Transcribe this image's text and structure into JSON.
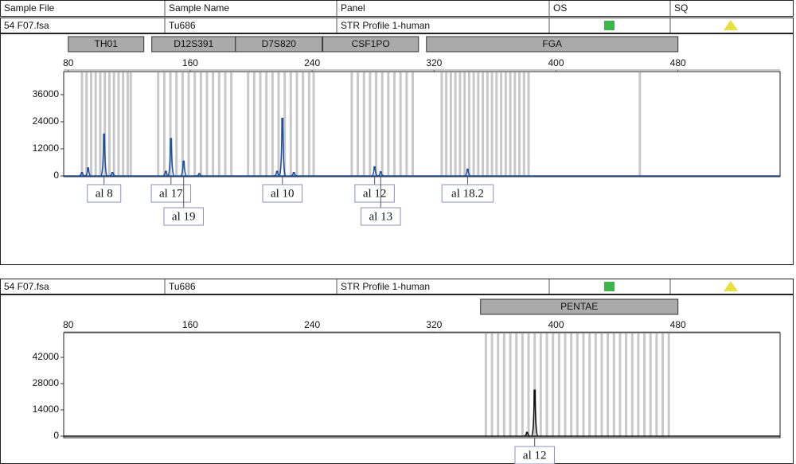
{
  "header": [
    "Sample File",
    "Sample Name",
    "Panel",
    "OS",
    "SQ"
  ],
  "samples": [
    {
      "file": "54  F07.fsa",
      "name": "Tu686",
      "panel": "STR Profile 1-human",
      "markers": [
        {
          "name": "TH01",
          "start": 80,
          "end": 129.6
        },
        {
          "name": "D12S391",
          "start": 134.8,
          "end": 189.7
        },
        {
          "name": "D7S820",
          "start": 189.7,
          "end": 246.6
        },
        {
          "name": "CSF1PO",
          "start": 247,
          "end": 309.8
        },
        {
          "name": "FGA",
          "start": 315,
          "end": 480
        }
      ],
      "xlim": [
        77,
        547
      ],
      "xticks": [
        80,
        160,
        240,
        320,
        400,
        480
      ],
      "ylim": [
        -350,
        46200
      ],
      "yticks": [
        0,
        12000,
        24000,
        36000
      ],
      "color": "#1f4fa0",
      "bins": [
        89,
        92,
        95,
        98,
        101,
        104,
        107,
        110,
        113,
        116,
        119,
        121,
        139,
        143,
        147,
        151,
        155,
        159,
        163,
        167,
        171,
        175,
        179,
        183,
        187,
        198,
        202,
        206,
        210,
        214,
        218,
        222,
        226,
        230,
        234,
        238,
        241,
        266,
        270,
        274,
        278,
        282,
        286,
        290,
        294,
        298,
        302,
        306,
        325,
        328,
        331,
        334,
        337,
        340,
        343,
        346,
        349,
        352,
        355,
        358,
        361,
        364,
        367,
        370,
        373,
        376,
        379,
        382,
        455
      ],
      "peaks": [
        {
          "x": 89,
          "y": 1500
        },
        {
          "x": 93,
          "y": 3500
        },
        {
          "x": 103.5,
          "y": 18500,
          "label": "al 8"
        },
        {
          "x": 109,
          "y": 1500
        },
        {
          "x": 144,
          "y": 2000
        },
        {
          "x": 147.4,
          "y": 16500,
          "label": "al 17"
        },
        {
          "x": 155.7,
          "y": 6500,
          "label": "al 19"
        },
        {
          "x": 166,
          "y": 1000
        },
        {
          "x": 217,
          "y": 2000
        },
        {
          "x": 220.5,
          "y": 25500,
          "label": "al 10"
        },
        {
          "x": 228,
          "y": 1500
        },
        {
          "x": 281,
          "y": 4000,
          "label": "al 12"
        },
        {
          "x": 285,
          "y": 1800,
          "label": "al 13"
        },
        {
          "x": 342,
          "y": 3000,
          "label": "al 18.2"
        }
      ]
    },
    {
      "file": "54  F07.fsa",
      "name": "Tu686",
      "panel": "STR Profile 1-human",
      "markers": [
        {
          "name": "PENTAE",
          "start": 350.5,
          "end": 480
        }
      ],
      "xlim": [
        77,
        547
      ],
      "xticks": [
        80,
        160,
        240,
        320,
        400,
        480
      ],
      "ylim": [
        -850,
        55150
      ],
      "yticks": [
        0,
        14000,
        28000,
        42000
      ],
      "color": "#111111",
      "bins": [
        354,
        358,
        362,
        366,
        370,
        374,
        378,
        382,
        386,
        390,
        394,
        398,
        402,
        406,
        410,
        414,
        418,
        422,
        426,
        430,
        434,
        438,
        442,
        446,
        450,
        454,
        458,
        462,
        466,
        470,
        474
      ],
      "peaks": [
        {
          "x": 381,
          "y": 2000
        },
        {
          "x": 386,
          "y": 24500,
          "label": "al 12"
        }
      ]
    }
  ]
}
